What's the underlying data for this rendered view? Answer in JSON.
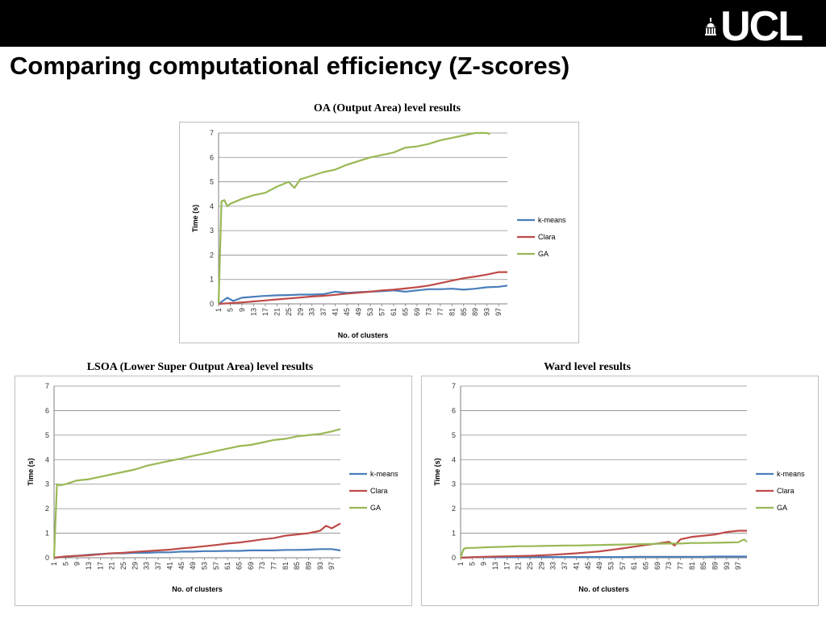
{
  "logo": {
    "text": "UCL"
  },
  "slide": {
    "title": "Comparing computational efficiency (Z-scores)"
  },
  "panels": [
    {
      "caption": "OA (Output Area) level results"
    },
    {
      "caption": "LSOA (Lower Super Output Area) level results"
    },
    {
      "caption": "Ward level results"
    }
  ],
  "colors": {
    "k-means": "#4a7ebb",
    "Clara": "#be4b48",
    "GA": "#98b954"
  },
  "chart_data": [
    {
      "type": "line",
      "title": "OA (Output Area) level results",
      "xlabel": "No. of clusters",
      "ylabel": "Time (s)",
      "ylim": [
        0,
        7
      ],
      "yticks": [
        0,
        1,
        2,
        3,
        4,
        5,
        6,
        7
      ],
      "xlim": [
        1,
        100
      ],
      "xticks": [
        1,
        5,
        9,
        13,
        17,
        21,
        25,
        29,
        33,
        37,
        41,
        45,
        49,
        53,
        57,
        61,
        65,
        69,
        73,
        77,
        81,
        85,
        89,
        93,
        97
      ],
      "grid": true,
      "legend": "right",
      "series": [
        {
          "name": "k-means",
          "x": [
            1,
            4,
            6,
            9,
            12,
            16,
            21,
            25,
            29,
            33,
            37,
            41,
            45,
            49,
            53,
            57,
            61,
            65,
            69,
            73,
            77,
            81,
            85,
            89,
            93,
            97,
            100
          ],
          "y": [
            0,
            0.25,
            0.12,
            0.25,
            0.28,
            0.32,
            0.35,
            0.36,
            0.38,
            0.38,
            0.4,
            0.5,
            0.45,
            0.48,
            0.5,
            0.52,
            0.55,
            0.5,
            0.55,
            0.6,
            0.6,
            0.62,
            0.58,
            0.62,
            0.68,
            0.7,
            0.75
          ]
        },
        {
          "name": "Clara",
          "x": [
            1,
            5,
            9,
            13,
            17,
            21,
            25,
            29,
            33,
            37,
            41,
            45,
            49,
            53,
            57,
            61,
            65,
            69,
            73,
            77,
            81,
            85,
            89,
            93,
            97,
            100
          ],
          "y": [
            0,
            0.03,
            0.06,
            0.1,
            0.14,
            0.18,
            0.22,
            0.26,
            0.3,
            0.33,
            0.37,
            0.42,
            0.46,
            0.5,
            0.55,
            0.58,
            0.63,
            0.68,
            0.75,
            0.85,
            0.95,
            1.05,
            1.12,
            1.2,
            1.3,
            1.3
          ]
        },
        {
          "name": "GA",
          "x": [
            1,
            2,
            3,
            4,
            5,
            9,
            13,
            17,
            21,
            25,
            27,
            29,
            33,
            37,
            41,
            45,
            49,
            53,
            57,
            61,
            65,
            69,
            73,
            77,
            81,
            85,
            89,
            93,
            94
          ],
          "y": [
            0,
            4.2,
            4.25,
            4.0,
            4.1,
            4.3,
            4.45,
            4.55,
            4.8,
            5.0,
            4.75,
            5.1,
            5.25,
            5.4,
            5.5,
            5.7,
            5.85,
            6.0,
            6.1,
            6.2,
            6.4,
            6.45,
            6.55,
            6.7,
            6.8,
            6.9,
            7.0,
            7.0,
            6.95
          ]
        }
      ]
    },
    {
      "type": "line",
      "title": "LSOA (Lower Super Output Area) level results",
      "xlabel": "No. of clusters",
      "ylabel": "Time (s)",
      "ylim": [
        0,
        7
      ],
      "yticks": [
        0,
        1,
        2,
        3,
        4,
        5,
        6,
        7
      ],
      "xlim": [
        1,
        100
      ],
      "xticks": [
        1,
        5,
        9,
        13,
        17,
        21,
        25,
        29,
        33,
        37,
        41,
        45,
        49,
        53,
        57,
        61,
        65,
        69,
        73,
        77,
        81,
        85,
        89,
        93,
        97
      ],
      "grid": true,
      "legend": "right",
      "series": [
        {
          "name": "k-means",
          "x": [
            1,
            5,
            9,
            13,
            17,
            21,
            25,
            29,
            33,
            37,
            41,
            45,
            49,
            53,
            57,
            61,
            65,
            69,
            73,
            77,
            81,
            85,
            89,
            93,
            97,
            100
          ],
          "y": [
            0,
            0.05,
            0.08,
            0.12,
            0.15,
            0.18,
            0.18,
            0.2,
            0.2,
            0.22,
            0.22,
            0.25,
            0.25,
            0.27,
            0.27,
            0.28,
            0.28,
            0.3,
            0.3,
            0.3,
            0.32,
            0.32,
            0.33,
            0.35,
            0.35,
            0.3
          ]
        },
        {
          "name": "Clara",
          "x": [
            1,
            5,
            9,
            13,
            17,
            21,
            25,
            29,
            33,
            37,
            41,
            45,
            49,
            53,
            57,
            61,
            65,
            69,
            73,
            77,
            81,
            85,
            89,
            93,
            95,
            97,
            100
          ],
          "y": [
            0,
            0.05,
            0.08,
            0.1,
            0.14,
            0.18,
            0.2,
            0.24,
            0.27,
            0.3,
            0.33,
            0.38,
            0.42,
            0.47,
            0.52,
            0.58,
            0.62,
            0.68,
            0.75,
            0.8,
            0.9,
            0.95,
            1.0,
            1.1,
            1.3,
            1.2,
            1.4
          ]
        },
        {
          "name": "GA",
          "x": [
            1,
            2,
            3,
            5,
            9,
            13,
            17,
            21,
            25,
            29,
            33,
            37,
            41,
            45,
            49,
            53,
            57,
            61,
            65,
            69,
            73,
            77,
            81,
            85,
            89,
            93,
            97,
            100
          ],
          "y": [
            0,
            3.0,
            2.95,
            3.0,
            3.15,
            3.2,
            3.3,
            3.4,
            3.5,
            3.6,
            3.75,
            3.85,
            3.95,
            4.05,
            4.15,
            4.25,
            4.35,
            4.45,
            4.55,
            4.6,
            4.7,
            4.8,
            4.85,
            4.95,
            5.0,
            5.05,
            5.15,
            5.25
          ]
        }
      ]
    },
    {
      "type": "line",
      "title": "Ward level results",
      "xlabel": "No. of clusters",
      "ylabel": "Time (s)",
      "ylim": [
        0,
        7
      ],
      "yticks": [
        0,
        1,
        2,
        3,
        4,
        5,
        6,
        7
      ],
      "xlim": [
        1,
        100
      ],
      "xticks": [
        1,
        5,
        9,
        13,
        17,
        21,
        25,
        29,
        33,
        37,
        41,
        45,
        49,
        53,
        57,
        61,
        65,
        69,
        73,
        77,
        81,
        85,
        89,
        93,
        97
      ],
      "grid": true,
      "legend": "right",
      "series": [
        {
          "name": "k-means",
          "x": [
            1,
            5,
            9,
            13,
            17,
            21,
            25,
            29,
            33,
            37,
            41,
            45,
            49,
            53,
            57,
            61,
            65,
            69,
            73,
            77,
            81,
            85,
            89,
            93,
            97,
            100
          ],
          "y": [
            0,
            0.02,
            0.02,
            0.02,
            0.02,
            0.02,
            0.03,
            0.03,
            0.03,
            0.03,
            0.03,
            0.03,
            0.03,
            0.03,
            0.03,
            0.04,
            0.04,
            0.04,
            0.04,
            0.04,
            0.04,
            0.04,
            0.05,
            0.05,
            0.05,
            0.05
          ]
        },
        {
          "name": "Clara",
          "x": [
            1,
            5,
            9,
            13,
            17,
            21,
            25,
            29,
            33,
            37,
            41,
            45,
            49,
            53,
            57,
            61,
            65,
            69,
            73,
            75,
            77,
            81,
            85,
            89,
            93,
            97,
            100
          ],
          "y": [
            0,
            0.02,
            0.04,
            0.05,
            0.06,
            0.07,
            0.08,
            0.1,
            0.12,
            0.15,
            0.18,
            0.22,
            0.26,
            0.32,
            0.38,
            0.45,
            0.52,
            0.58,
            0.65,
            0.5,
            0.75,
            0.85,
            0.9,
            0.95,
            1.05,
            1.1,
            1.1
          ]
        },
        {
          "name": "GA",
          "x": [
            1,
            2,
            3,
            5,
            9,
            13,
            17,
            21,
            25,
            29,
            33,
            37,
            41,
            45,
            49,
            53,
            57,
            61,
            65,
            69,
            73,
            77,
            81,
            85,
            89,
            93,
            97,
            99,
            100
          ],
          "y": [
            0,
            0.35,
            0.4,
            0.4,
            0.42,
            0.44,
            0.45,
            0.47,
            0.47,
            0.48,
            0.49,
            0.5,
            0.5,
            0.51,
            0.52,
            0.53,
            0.54,
            0.55,
            0.56,
            0.57,
            0.58,
            0.58,
            0.6,
            0.6,
            0.61,
            0.62,
            0.63,
            0.75,
            0.65
          ]
        }
      ]
    }
  ]
}
